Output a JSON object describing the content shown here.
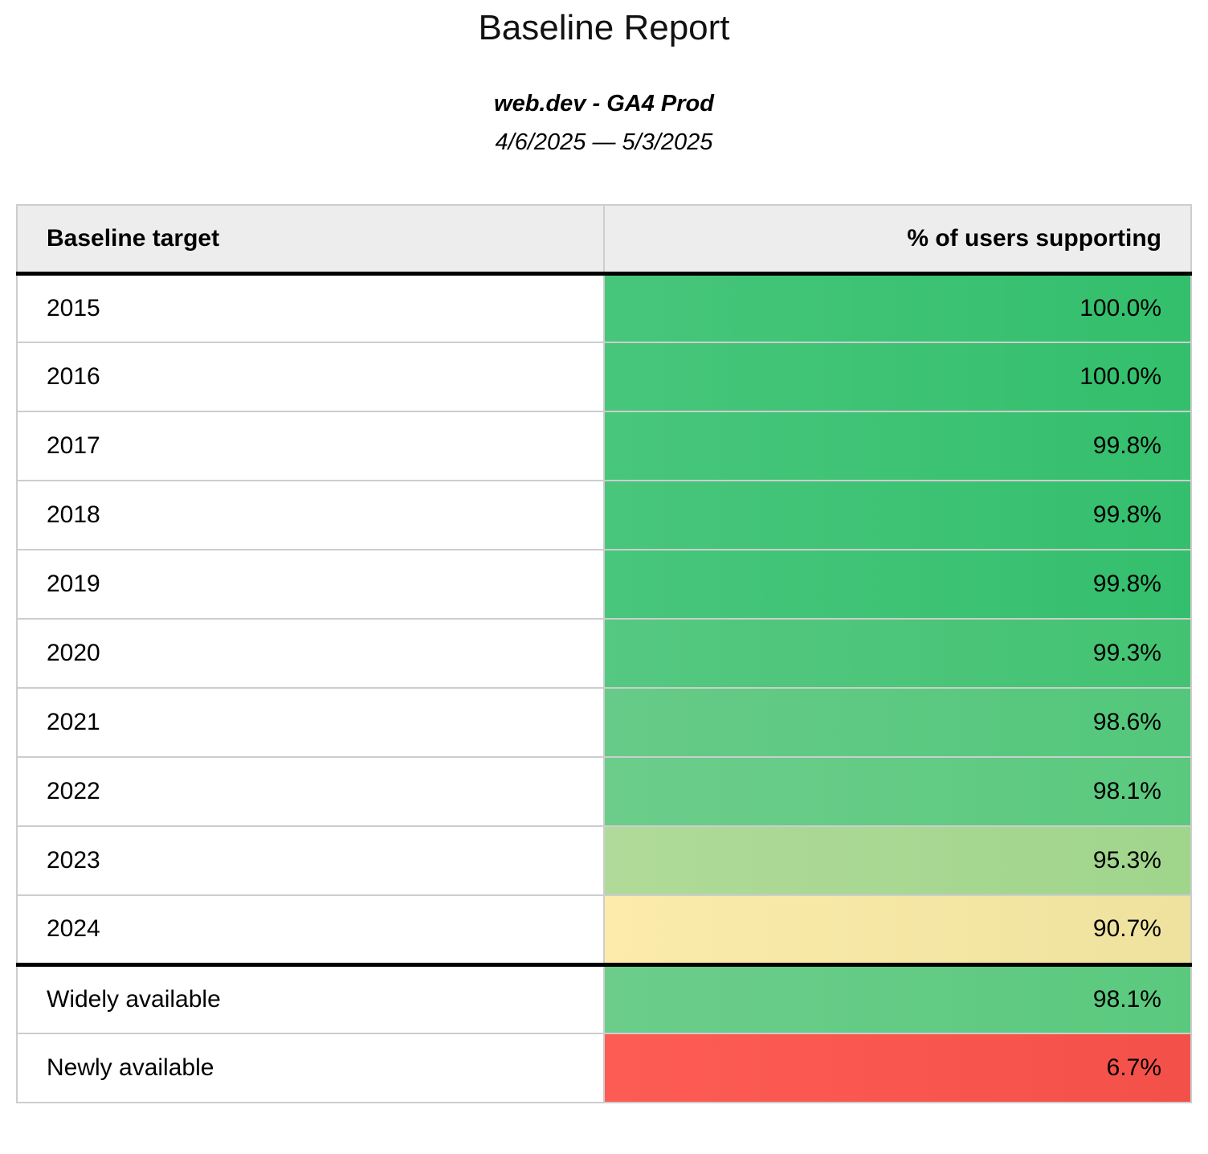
{
  "header": {
    "title": "Baseline Report",
    "property": "web.dev - GA4 Prod",
    "date_range": "4/6/2025 — 5/3/2025"
  },
  "table": {
    "columns": [
      "Baseline target",
      "% of users supporting"
    ],
    "rows": [
      {
        "target": "2015",
        "value": "100.0%",
        "color_left": "#47c67b",
        "color_right": "#33bf6c",
        "separator_before": false
      },
      {
        "target": "2016",
        "value": "100.0%",
        "color_left": "#47c67b",
        "color_right": "#33bf6c",
        "separator_before": false
      },
      {
        "target": "2017",
        "value": "99.8%",
        "color_left": "#48c67c",
        "color_right": "#34bf6d",
        "separator_before": false
      },
      {
        "target": "2018",
        "value": "99.8%",
        "color_left": "#48c67c",
        "color_right": "#34bf6d",
        "separator_before": false
      },
      {
        "target": "2019",
        "value": "99.8%",
        "color_left": "#48c67c",
        "color_right": "#34bf6d",
        "separator_before": false
      },
      {
        "target": "2020",
        "value": "99.3%",
        "color_left": "#55c881",
        "color_right": "#43c372",
        "separator_before": false
      },
      {
        "target": "2021",
        "value": "98.6%",
        "color_left": "#66cb88",
        "color_right": "#53c77b",
        "separator_before": false
      },
      {
        "target": "2022",
        "value": "98.1%",
        "color_left": "#6ccd8b",
        "color_right": "#5ac97e",
        "separator_before": false
      },
      {
        "target": "2023",
        "value": "95.3%",
        "color_left": "#b0da99",
        "color_right": "#a0d58c",
        "separator_before": false
      },
      {
        "target": "2024",
        "value": "90.7%",
        "color_left": "#fcebab",
        "color_right": "#eee29e",
        "separator_before": false
      },
      {
        "target": "Widely available",
        "value": "98.1%",
        "color_left": "#6ccd8b",
        "color_right": "#5ac97e",
        "separator_before": true
      },
      {
        "target": "Newly available",
        "value": "6.7%",
        "color_left": "#fd5c54",
        "color_right": "#f4504a",
        "separator_before": false
      }
    ]
  },
  "colors": {
    "header_background": "#ededed",
    "grid_line": "#cdcdcd",
    "strong_rule": "#000000",
    "scale_high_green": "#3ec374",
    "scale_mid_yellow": "#f6e7a5",
    "scale_low_red": "#f9544d"
  },
  "chart_data": {
    "type": "table",
    "title": "Baseline Report",
    "subtitle": "web.dev - GA4 Prod",
    "date_range": "4/6/2025 — 5/3/2025",
    "columns": [
      "Baseline target",
      "% of users supporting"
    ],
    "categories": [
      "2015",
      "2016",
      "2017",
      "2018",
      "2019",
      "2020",
      "2021",
      "2022",
      "2023",
      "2024",
      "Widely available",
      "Newly available"
    ],
    "values": [
      100.0,
      100.0,
      99.8,
      99.8,
      99.8,
      99.3,
      98.6,
      98.1,
      95.3,
      90.7,
      98.1,
      6.7
    ],
    "value_unit": "%",
    "color_scale": "green-to-red conditional formatting on value column",
    "notes": "Thick black rule separates year targets (2015-2024) from availability groups (Widely available, Newly available)"
  }
}
